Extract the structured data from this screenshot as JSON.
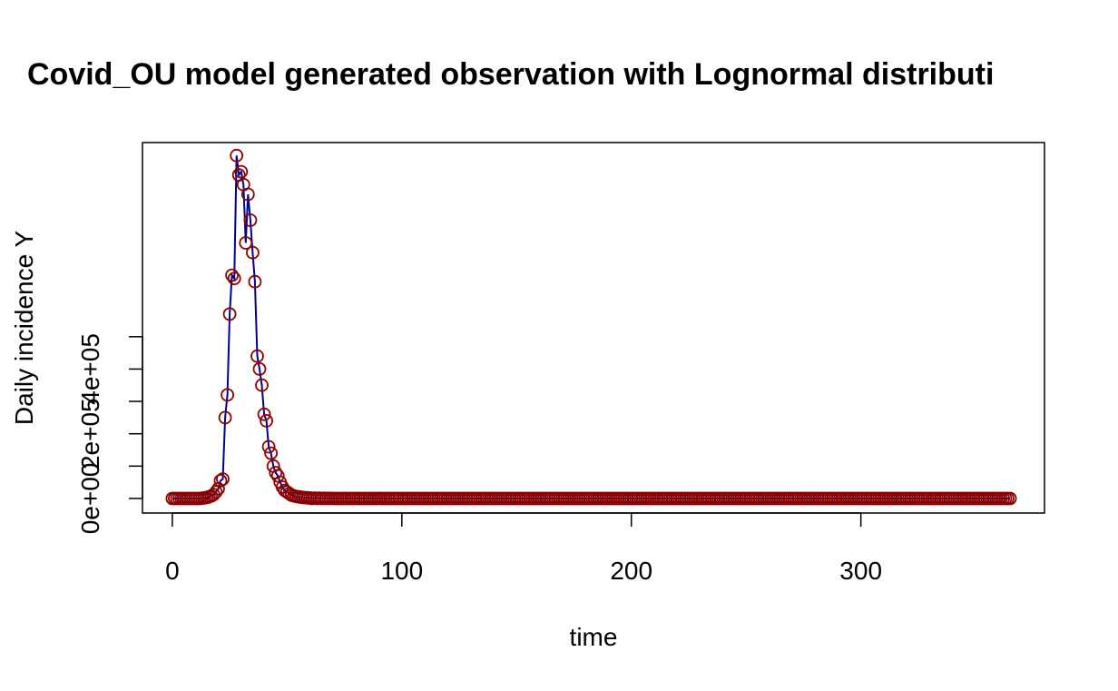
{
  "chart_data": {
    "type": "scatter",
    "title": "Covid_OU model generated observation with Lognormal distributi",
    "xlabel": "time",
    "ylabel": "Daily incidence Y",
    "xlim": [
      -13,
      380
    ],
    "ylim": [
      -45000,
      1100000
    ],
    "x_ticks": [
      0,
      100,
      200,
      300
    ],
    "x_tick_labels": [
      "0",
      "100",
      "200",
      "300"
    ],
    "y_ticks": [
      0,
      200000,
      400000
    ],
    "y_tick_labels": [
      "0e+00",
      "2e+05",
      "4e+05"
    ],
    "y_minor_ticks": [
      100000,
      300000,
      500000
    ],
    "grid": false,
    "colors": {
      "points": "#8B0000",
      "line": "#00008B"
    },
    "series": [
      {
        "marker": "open-circle",
        "x": [
          0,
          1,
          2,
          3,
          4,
          5,
          6,
          7,
          8,
          9,
          10,
          11,
          12,
          13,
          14,
          15,
          16,
          17,
          18,
          19,
          20,
          21,
          22,
          23,
          24,
          25,
          26,
          27,
          28,
          29,
          30,
          31,
          32,
          33,
          34,
          35,
          36,
          37,
          38,
          39,
          40,
          41,
          42,
          43,
          44,
          45,
          46,
          47,
          48,
          49,
          50,
          51,
          52,
          53,
          54,
          55,
          56,
          57,
          58,
          59,
          60,
          62,
          64,
          66,
          68,
          70,
          75,
          80,
          90,
          100,
          120,
          150,
          200,
          250,
          300,
          350,
          365
        ],
        "values": [
          0,
          0,
          0,
          0,
          0,
          0,
          0,
          0,
          0,
          0,
          0,
          0,
          0,
          1000,
          2000,
          3000,
          5000,
          8000,
          12000,
          20000,
          30000,
          55000,
          60000,
          250000,
          320000,
          570000,
          690000,
          680000,
          1060000,
          1000000,
          1010000,
          970000,
          790000,
          940000,
          860000,
          760000,
          670000,
          440000,
          400000,
          350000,
          260000,
          240000,
          160000,
          140000,
          100000,
          80000,
          70000,
          50000,
          35000,
          25000,
          20000,
          15000,
          10000,
          8000,
          6000,
          5000,
          4000,
          3000,
          2500,
          2000,
          1500,
          1000,
          800,
          500,
          400,
          300,
          200,
          100,
          50,
          20,
          10,
          5,
          0,
          0,
          0,
          0,
          0
        ]
      }
    ]
  }
}
